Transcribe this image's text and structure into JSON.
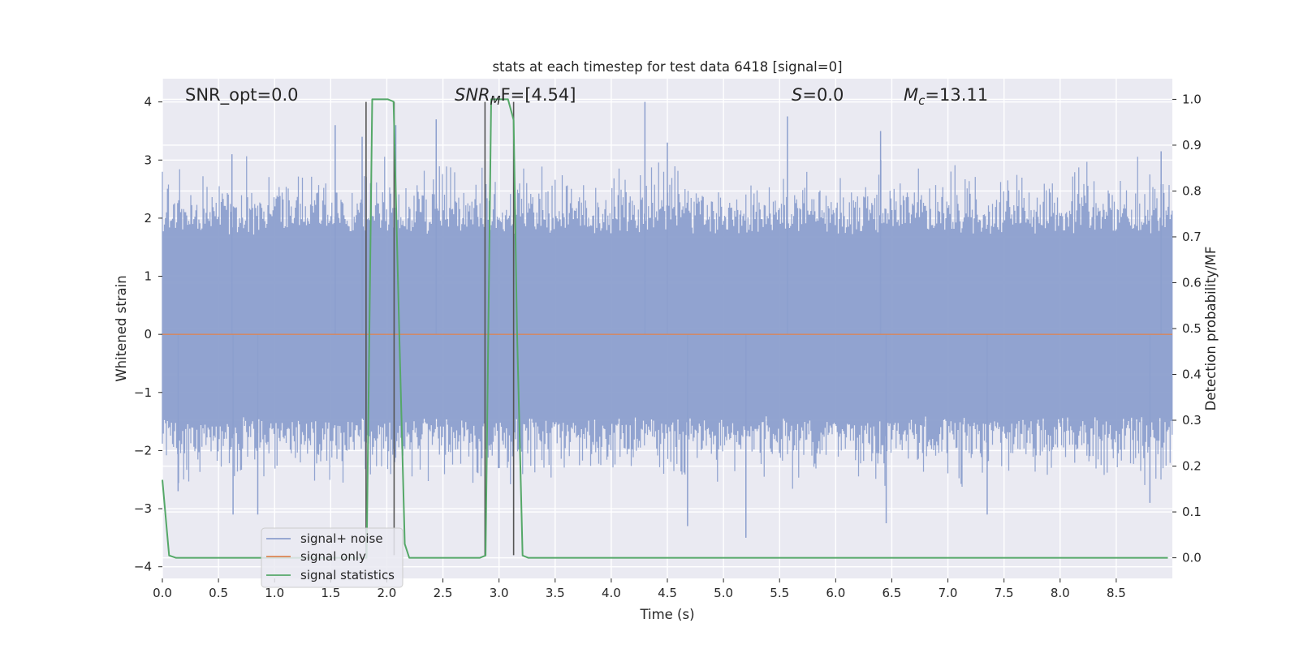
{
  "chart_data": {
    "type": "line",
    "title": "stats at each timestep for test data 6418 [signal=0]",
    "xlabel": "Time (s)",
    "ylabel_left": "Whitened strain",
    "ylabel_right": "Detection probability/MF",
    "xlim": [
      0.0,
      9.0
    ],
    "ylim_left": [
      -4.2,
      4.4
    ],
    "ylim_right": [
      -0.045,
      1.045
    ],
    "x_ticks": [
      "0.0",
      "0.5",
      "1.0",
      "1.5",
      "2.0",
      "2.5",
      "3.0",
      "3.5",
      "4.0",
      "4.5",
      "5.0",
      "5.5",
      "6.0",
      "6.5",
      "7.0",
      "7.5",
      "8.0",
      "8.5"
    ],
    "y_ticks_left": [
      "−4",
      "−3",
      "−2",
      "−1",
      "0",
      "1",
      "2",
      "3",
      "4"
    ],
    "y_ticks_right": [
      "0.0",
      "0.1",
      "0.2",
      "0.3",
      "0.4",
      "0.5",
      "0.6",
      "0.7",
      "0.8",
      "0.9",
      "1.0"
    ],
    "grid": true,
    "legend_position": "lower-left",
    "annotations": [
      {
        "text": "SNR_opt=0.0"
      },
      {
        "base": "SNR",
        "sub": "M",
        "rest": "F=[4.54]"
      },
      {
        "base": "S",
        "sub": "",
        "rest": "=0.0"
      },
      {
        "base": "M",
        "sub": "c",
        "rest": "=13.11"
      }
    ],
    "series": [
      {
        "name": "signal+ noise",
        "axis": "left",
        "color": "#8c9fce",
        "kind": "noise",
        "sample_rate_hz": 2048,
        "typical_envelope": [
          -1.4,
          1.7
        ],
        "extreme_range": [
          -3.9,
          4.0
        ],
        "notable_peaks": [
          {
            "x": 0.62,
            "y": 3.1
          },
          {
            "x": 1.54,
            "y": 3.6
          },
          {
            "x": 1.78,
            "y": 3.4
          },
          {
            "x": 2.08,
            "y": 3.6
          },
          {
            "x": 2.44,
            "y": 3.7
          },
          {
            "x": 4.3,
            "y": 4.0
          },
          {
            "x": 4.5,
            "y": 3.3
          },
          {
            "x": 5.57,
            "y": 3.75
          },
          {
            "x": 6.4,
            "y": 3.5
          },
          {
            "x": 8.9,
            "y": 3.15
          },
          {
            "x": 0.14,
            "y": -2.7
          },
          {
            "x": 0.63,
            "y": -3.1
          },
          {
            "x": 0.85,
            "y": -3.1
          },
          {
            "x": 4.68,
            "y": -3.3
          },
          {
            "x": 5.2,
            "y": -3.5
          },
          {
            "x": 6.45,
            "y": -3.25
          },
          {
            "x": 7.35,
            "y": -3.1
          },
          {
            "x": 8.8,
            "y": -2.9
          }
        ]
      },
      {
        "name": "signal only",
        "axis": "left",
        "color": "#dd8452",
        "x": [
          0.0,
          9.0
        ],
        "y": [
          0.0,
          0.0
        ]
      },
      {
        "name": "signal statistics",
        "axis": "right",
        "color": "#55a868",
        "x": [
          0.0,
          0.06,
          0.12,
          1.8,
          1.82,
          1.87,
          2.01,
          2.06,
          2.11,
          2.16,
          2.2,
          2.83,
          2.88,
          2.93,
          2.98,
          3.08,
          3.13,
          3.16,
          3.21,
          3.26,
          8.96
        ],
        "y": [
          0.17,
          0.005,
          0.0,
          0.0,
          0.0,
          1.0,
          1.0,
          0.995,
          0.5,
          0.03,
          0.0,
          0.0,
          0.005,
          1.0,
          1.0,
          1.0,
          0.955,
          0.5,
          0.005,
          0.0,
          0.0
        ]
      }
    ],
    "vertical_markers": {
      "color": "#555555",
      "lines": [
        {
          "x": 1.815,
          "y_from": -3.8,
          "y_to": 4.0
        },
        {
          "x": 2.065,
          "y_from": -3.8,
          "y_to": 4.0
        },
        {
          "x": 2.875,
          "y_from": -3.8,
          "y_to": 4.0
        },
        {
          "x": 3.13,
          "y_from": -3.8,
          "y_to": 4.0
        }
      ]
    },
    "style": {
      "axes_face": "#eaeaf2",
      "grid_color": "#ffffff",
      "legend_face": "#eaeaf2",
      "legend_edge": "#cccccc"
    }
  }
}
